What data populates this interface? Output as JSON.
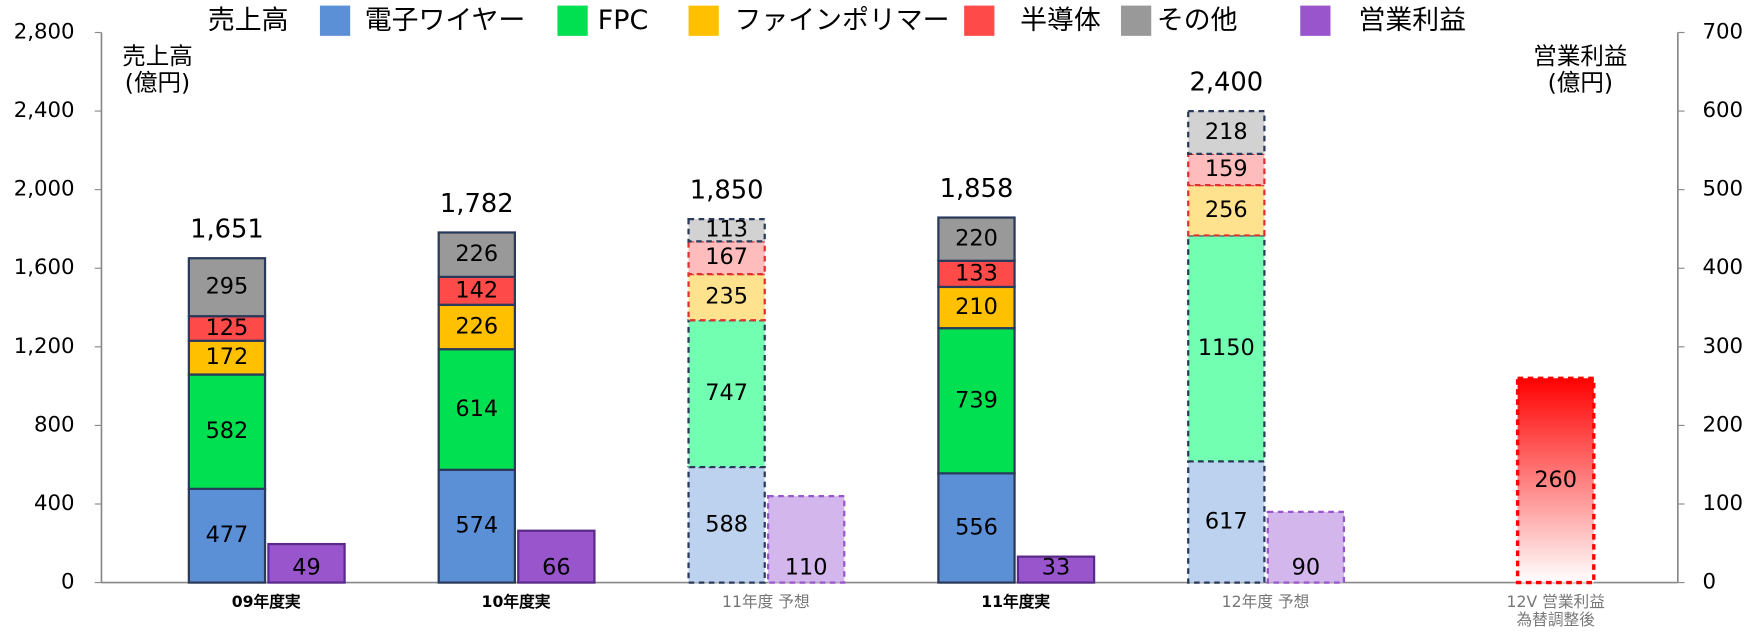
{
  "chart_data": {
    "type": "stacked-bar",
    "legend_title": "売上高",
    "ylabel": "売上高\n(億円)",
    "y2label": "営業利益\n(億円)",
    "categories": [
      "09年度実",
      "10年度実",
      "11年度  予想",
      "11年度実",
      "12年度  予想",
      "12V  営業利益\n為替調整後"
    ],
    "forecast": [
      false,
      false,
      true,
      false,
      true,
      true
    ],
    "series": [
      {
        "name": "電子ワイヤー",
        "color": "#5b8fd6",
        "light_color": "#bcd2ee",
        "values": [
          477,
          574,
          588,
          556,
          617,
          null
        ]
      },
      {
        "name": "FPC",
        "color": "#00e050",
        "light_color": "#72ffb2",
        "values": [
          582,
          614,
          747,
          739,
          1150,
          null
        ]
      },
      {
        "name": "ファインポリマー",
        "color": "#ffc000",
        "light_color": "#ffe28e",
        "values": [
          172,
          226,
          235,
          210,
          256,
          null
        ]
      },
      {
        "name": "半導体",
        "color": "#ff4a4a",
        "light_color": "#ffbcbc",
        "values": [
          125,
          142,
          167,
          133,
          159,
          null
        ]
      },
      {
        "name": "その他",
        "color": "#999999",
        "light_color": "#d2d2d2",
        "values": [
          295,
          226,
          113,
          220,
          218,
          null
        ]
      },
      {
        "name": "営業利益",
        "color": "#9955cc",
        "light_color": "#d2b6ec",
        "highlight_color": "#ff0000",
        "axis": "y2",
        "values": [
          49,
          66,
          110,
          33,
          90,
          260
        ]
      }
    ],
    "totals": {
      "values": [
        1651,
        1782,
        1850,
        1858,
        2400
      ],
      "value_labels": [
        "1,651",
        "1,782",
        "1,850",
        "1,858",
        "2,400"
      ]
    },
    "ylim": [
      0,
      2800
    ],
    "yticks": [
      0,
      400,
      800,
      {
        "value": 1200,
        "label": "1,200"
      },
      {
        "value": 1600,
        "label": "1,600"
      },
      {
        "value": 2000,
        "label": "2,000"
      },
      {
        "value": 2400,
        "label": "2,400"
      },
      {
        "value": 2800,
        "label": "2,800"
      }
    ],
    "y2lim": [
      0,
      700
    ],
    "y2ticks": [
      0,
      100,
      200,
      300,
      400,
      500,
      600,
      700
    ]
  }
}
